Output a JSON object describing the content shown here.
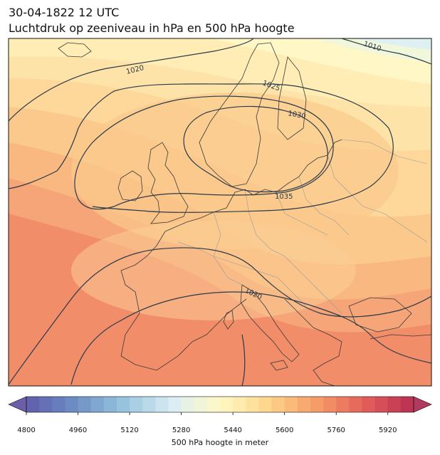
{
  "header": {
    "datetime": "30-04-1822 12 UTC",
    "subtitle": "Luchtdruk op zeeniveau in hPa en 500 hPa hoogte"
  },
  "map": {
    "region": "Europe",
    "isobars": [
      {
        "value": 1010,
        "label": "1010"
      },
      {
        "value": 1020,
        "label": "1020"
      },
      {
        "value": 1025,
        "label": "1025"
      },
      {
        "value": 1030,
        "label": "1030"
      },
      {
        "value": 1035,
        "label": "1035"
      }
    ],
    "colors": {
      "isobar": "#2b3a4a",
      "coast": "#3a3a3a",
      "border": "#9a9a9a"
    }
  },
  "colorbar": {
    "label": "500 hPa hoogte in meter",
    "ticks": [
      "4800",
      "4960",
      "5120",
      "5280",
      "5440",
      "5600",
      "5760",
      "5920"
    ],
    "min": 4800,
    "max": 6000,
    "step": 40,
    "colormap": "RdYlBu_r"
  }
}
